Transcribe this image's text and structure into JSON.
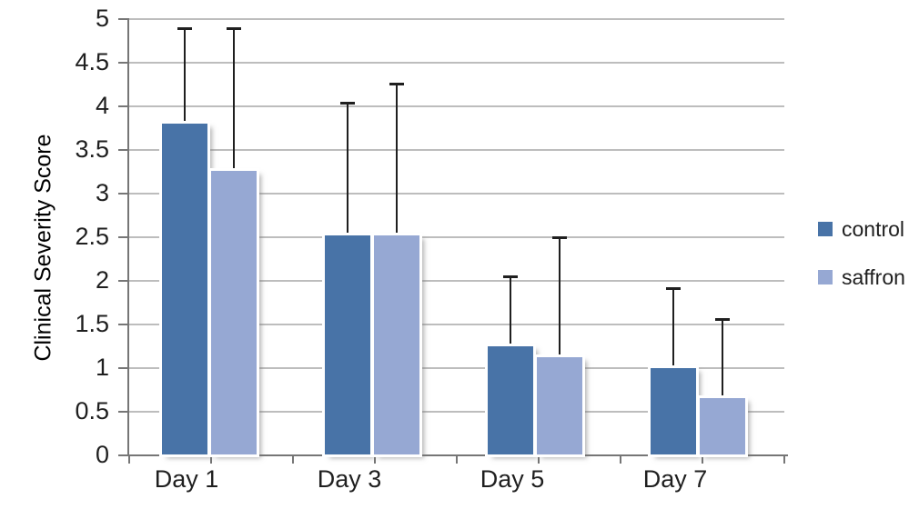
{
  "chart_data": {
    "type": "bar",
    "title": "",
    "xlabel": "",
    "ylabel": "Clinical Severity Score",
    "ylim": [
      0,
      5
    ],
    "ytick_step": 0.5,
    "grid": true,
    "legend_position": "right",
    "categories": [
      "Day 1",
      "Day 3",
      "Day 5",
      "Day 7"
    ],
    "series": [
      {
        "name": "control",
        "color": "#4873A7",
        "values": [
          3.8,
          2.52,
          1.25,
          1.0
        ],
        "upper_error": [
          1.1,
          1.52,
          0.8,
          0.92
        ]
      },
      {
        "name": "saffron",
        "color": "#96A8D3",
        "values": [
          3.26,
          2.52,
          1.12,
          0.66
        ],
        "upper_error": [
          1.64,
          1.74,
          1.38,
          0.9
        ]
      }
    ],
    "error_bar_color": "#1f1f1f",
    "gridline_color": "#bdbdbd",
    "axis_color": "#767676"
  }
}
